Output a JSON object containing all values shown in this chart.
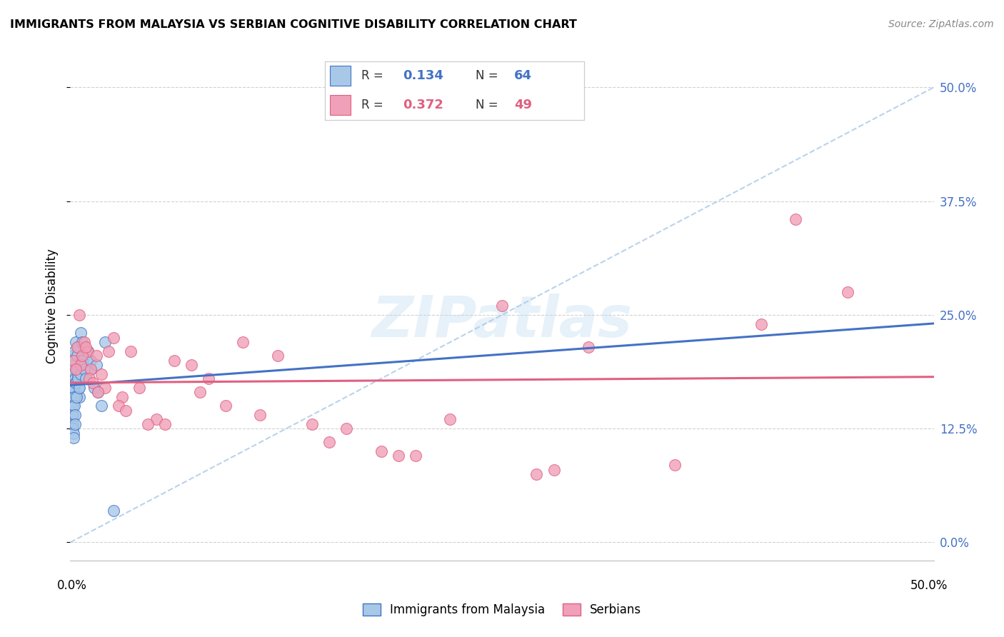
{
  "title": "IMMIGRANTS FROM MALAYSIA VS SERBIAN COGNITIVE DISABILITY CORRELATION CHART",
  "source": "Source: ZipAtlas.com",
  "ylabel": "Cognitive Disability",
  "ytick_values": [
    0.0,
    12.5,
    25.0,
    37.5,
    50.0
  ],
  "xlim": [
    0.0,
    50.0
  ],
  "ylim": [
    -2.0,
    54.0
  ],
  "color_malaysia": "#a8c8e8",
  "color_serbian": "#f0a0b8",
  "color_malaysia_line": "#4472c4",
  "color_serbian_line": "#e06080",
  "color_dash": "#a8c8e8",
  "watermark_text": "ZIPatlas",
  "malaysia_x": [
    0.05,
    0.08,
    0.1,
    0.12,
    0.15,
    0.18,
    0.2,
    0.22,
    0.25,
    0.28,
    0.3,
    0.32,
    0.35,
    0.38,
    0.4,
    0.42,
    0.45,
    0.48,
    0.5,
    0.55,
    0.6,
    0.65,
    0.7,
    0.8,
    0.9,
    1.0,
    1.1,
    1.2,
    1.4,
    1.6,
    1.8,
    2.0,
    0.05,
    0.06,
    0.07,
    0.08,
    0.09,
    0.1,
    0.11,
    0.12,
    0.13,
    0.14,
    0.15,
    0.16,
    0.17,
    0.18,
    0.2,
    0.22,
    0.24,
    0.26,
    0.28,
    0.3,
    0.35,
    0.4,
    0.45,
    0.5,
    0.6,
    0.7,
    0.8,
    0.9,
    1.0,
    1.2,
    1.5,
    2.5
  ],
  "malaysia_y": [
    18.0,
    17.5,
    19.0,
    18.5,
    20.5,
    17.0,
    19.5,
    21.0,
    20.0,
    18.0,
    22.0,
    17.5,
    16.5,
    19.0,
    20.5,
    21.5,
    18.5,
    17.0,
    16.0,
    19.0,
    23.0,
    20.0,
    22.0,
    19.5,
    18.0,
    21.0,
    20.0,
    19.0,
    17.0,
    16.5,
    15.0,
    22.0,
    15.5,
    16.0,
    14.5,
    15.0,
    13.5,
    14.0,
    15.5,
    16.5,
    15.0,
    14.0,
    13.0,
    12.5,
    12.0,
    11.5,
    17.0,
    16.0,
    15.0,
    14.0,
    13.0,
    17.5,
    16.0,
    19.0,
    18.0,
    17.0,
    18.5,
    20.0,
    19.0,
    18.0,
    21.0,
    20.0,
    19.5,
    3.5
  ],
  "serbian_x": [
    0.2,
    0.4,
    0.6,
    0.8,
    1.0,
    1.2,
    1.5,
    1.8,
    2.0,
    2.5,
    3.0,
    3.5,
    4.0,
    5.0,
    6.0,
    7.0,
    8.0,
    9.0,
    10.0,
    12.0,
    14.0,
    16.0,
    18.0,
    20.0,
    22.0,
    25.0,
    28.0,
    30.0,
    35.0,
    40.0,
    45.0,
    0.3,
    0.5,
    0.7,
    0.9,
    1.1,
    1.3,
    1.6,
    2.2,
    2.8,
    3.2,
    4.5,
    5.5,
    7.5,
    11.0,
    15.0,
    19.0,
    42.0,
    27.0
  ],
  "serbian_y": [
    20.0,
    21.5,
    19.5,
    22.0,
    21.0,
    19.0,
    20.5,
    18.5,
    17.0,
    22.5,
    16.0,
    21.0,
    17.0,
    13.5,
    20.0,
    19.5,
    18.0,
    15.0,
    22.0,
    20.5,
    13.0,
    12.5,
    10.0,
    9.5,
    13.5,
    26.0,
    8.0,
    21.5,
    8.5,
    24.0,
    27.5,
    19.0,
    25.0,
    20.5,
    21.5,
    18.0,
    17.5,
    16.5,
    21.0,
    15.0,
    14.5,
    13.0,
    13.0,
    16.5,
    14.0,
    11.0,
    9.5,
    35.5,
    7.5
  ],
  "legend_r1": "0.134",
  "legend_n1": "64",
  "legend_r2": "0.372",
  "legend_n2": "49",
  "legend_label1": "Immigrants from Malaysia",
  "legend_label2": "Serbians"
}
